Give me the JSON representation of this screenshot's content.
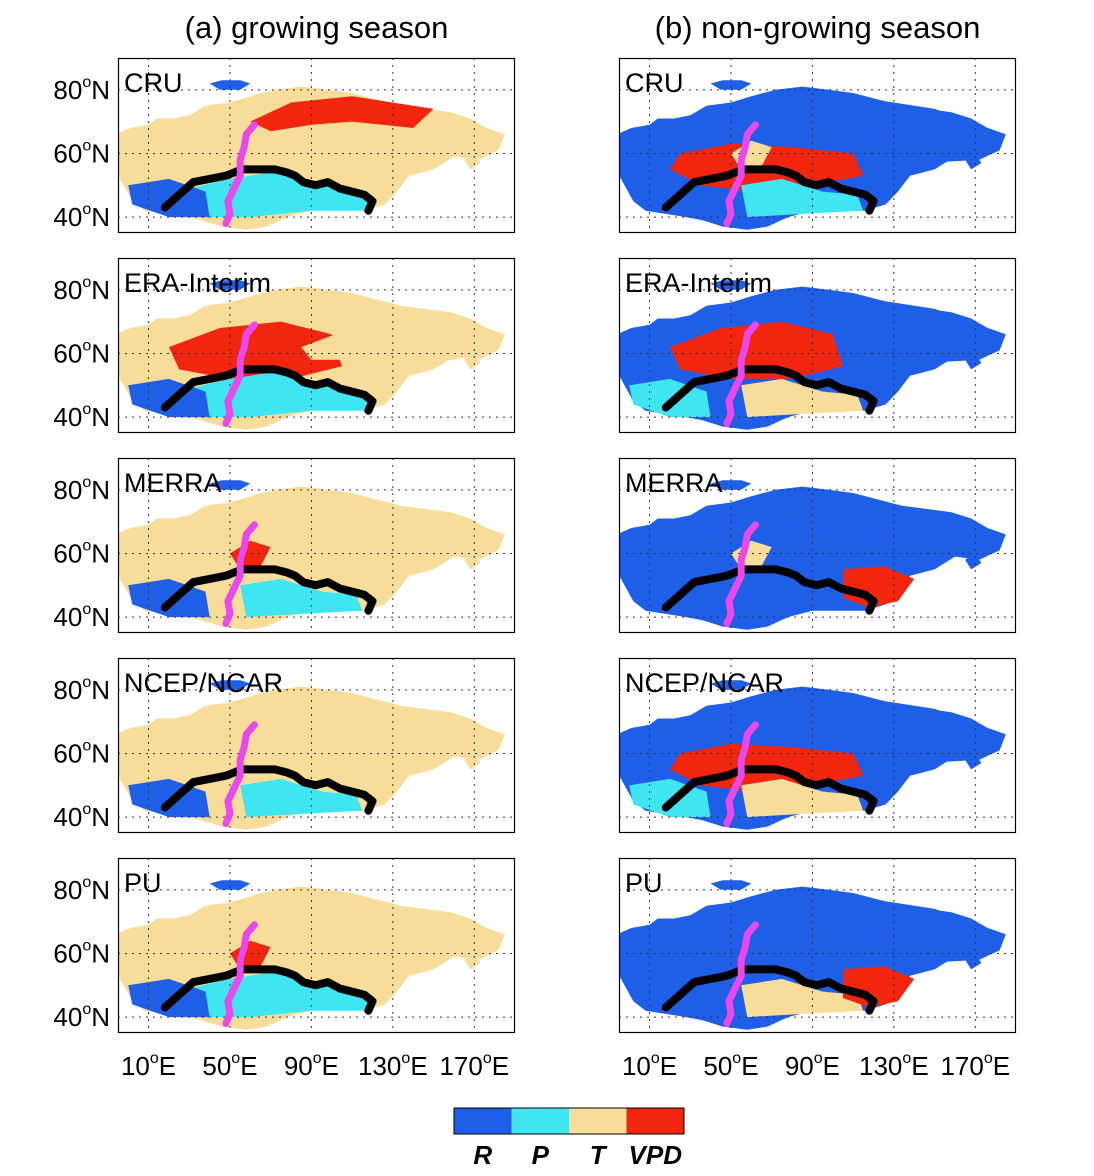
{
  "columns": [
    {
      "title": "(a) growing season",
      "dominant": "T"
    },
    {
      "title": "(b) non-growing season",
      "dominant": "R"
    }
  ],
  "rows": [
    {
      "label": "CRU",
      "growing": [
        "T",
        "VPD",
        "P",
        "R"
      ],
      "non_growing": [
        "R",
        "VPD",
        "T",
        "P"
      ]
    },
    {
      "label": "ERA-Interim",
      "growing": [
        "VPD",
        "T",
        "P",
        "R"
      ],
      "non_growing": [
        "R",
        "VPD",
        "T",
        "P"
      ]
    },
    {
      "label": "MERRA",
      "growing": [
        "T",
        "P",
        "R",
        "VPD"
      ],
      "non_growing": [
        "R",
        "VPD",
        "T"
      ]
    },
    {
      "label": "NCEP/NCAR",
      "growing": [
        "T",
        "R",
        "P"
      ],
      "non_growing": [
        "R",
        "VPD",
        "T",
        "P"
      ]
    },
    {
      "label": "PU",
      "growing": [
        "T",
        "P",
        "R",
        "VPD"
      ],
      "non_growing": [
        "R",
        "T",
        "VPD"
      ]
    }
  ],
  "y_ticks": [
    {
      "value": 80,
      "num": "80",
      "unit": "N"
    },
    {
      "value": 60,
      "num": "60",
      "unit": "N"
    },
    {
      "value": 40,
      "num": "40",
      "unit": "N"
    }
  ],
  "x_ticks": [
    {
      "value": 10,
      "num": "10",
      "unit": "E"
    },
    {
      "value": 50,
      "num": "50",
      "unit": "E"
    },
    {
      "value": 90,
      "num": "90",
      "unit": "E"
    },
    {
      "value": 130,
      "num": "130",
      "unit": "E"
    },
    {
      "value": 170,
      "num": "170",
      "unit": "E"
    }
  ],
  "legend": [
    {
      "label": "R",
      "color": "#1f5fe8"
    },
    {
      "label": "P",
      "color": "#3fe6f2"
    },
    {
      "label": "T",
      "color": "#f7dd99"
    },
    {
      "label": "VPD",
      "color": "#f2260e"
    }
  ],
  "boundary_lines": [
    {
      "color": "#000000"
    },
    {
      "color": "#ea48ea"
    }
  ],
  "map_extent": {
    "lon": [
      -5,
      190
    ],
    "lat": [
      35,
      90
    ]
  }
}
